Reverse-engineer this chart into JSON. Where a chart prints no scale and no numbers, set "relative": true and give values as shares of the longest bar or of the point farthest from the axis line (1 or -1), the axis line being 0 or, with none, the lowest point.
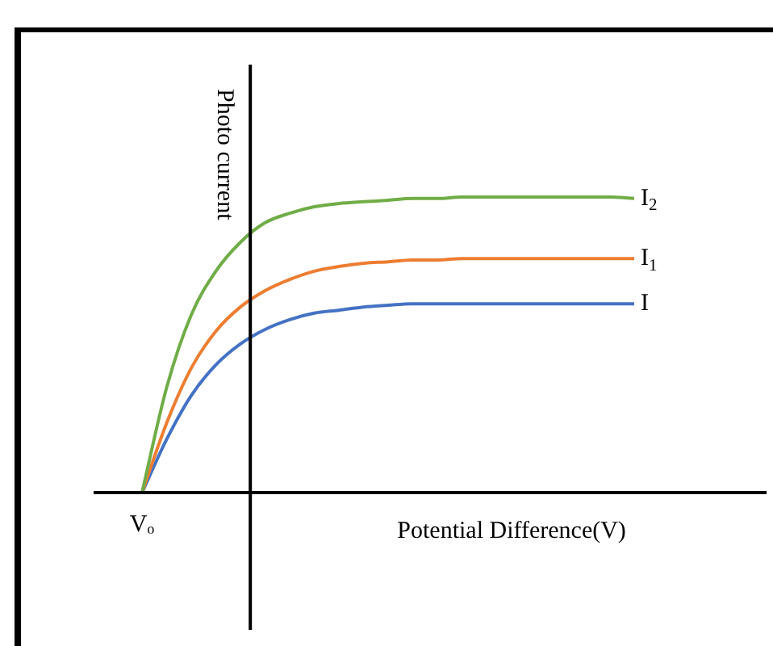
{
  "chart_data": {
    "type": "line",
    "relative": true,
    "xlabel": "Potential Difference(V)",
    "ylabel": "Photo current",
    "annotations": [
      "Vₒ"
    ],
    "legend": false,
    "marker": "none",
    "line_style": "solid",
    "categories": [
      null,
      null,
      null,
      null,
      null,
      null,
      null,
      null,
      null,
      null,
      null,
      null,
      null,
      null,
      null,
      null,
      null,
      null,
      null,
      null,
      null
    ],
    "series": [
      {
        "name": "I$_{2}$",
        "color": "#70ad47",
        "values": [
          0,
          0.355,
          0.601,
          0.749,
          0.847,
          0.913,
          0.945,
          0.967,
          0.978,
          0.984,
          0.989,
          0.995,
          0.995,
          1,
          1,
          1,
          1,
          1,
          1,
          1,
          0.995
        ]
      },
      {
        "name": "I$_{1}$",
        "color": "#ed7d31",
        "values": [
          0,
          0.235,
          0.421,
          0.546,
          0.628,
          0.683,
          0.721,
          0.749,
          0.765,
          0.776,
          0.781,
          0.787,
          0.787,
          0.792,
          0.792,
          0.792,
          0.792,
          0.792,
          0.792,
          0.792,
          0.792
        ]
      },
      {
        "name": "I",
        "color": "#4472c4",
        "values": [
          0,
          0.18,
          0.328,
          0.432,
          0.503,
          0.552,
          0.585,
          0.607,
          0.617,
          0.628,
          0.634,
          0.639,
          0.639,
          0.639,
          0.639,
          0.639,
          0.639,
          0.639,
          0.639,
          0.639,
          0.639
        ]
      }
    ]
  }
}
